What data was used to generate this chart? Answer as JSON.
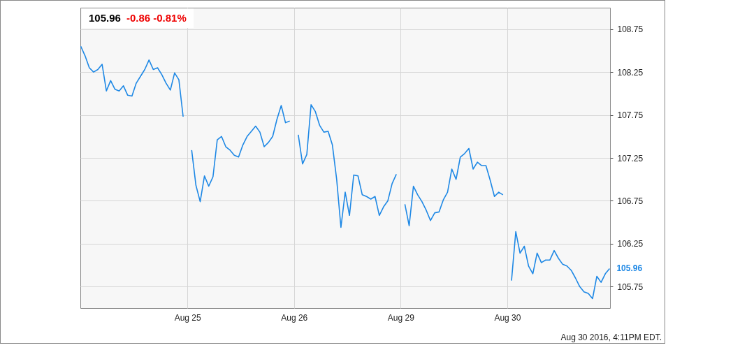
{
  "chart_data": {
    "type": "line",
    "title": "105.96",
    "subtitle": "-0.86  -0.81%",
    "annotations": [
      "105.96",
      "Aug 30 2016, 4:11PM EDT."
    ],
    "categories": [
      null,
      null,
      null,
      null,
      null,
      null,
      null,
      null,
      null,
      null,
      null,
      null,
      null,
      null,
      null,
      null,
      null,
      null,
      null,
      null,
      null,
      null,
      null,
      null,
      null,
      "Aug 25",
      null,
      null,
      null,
      null,
      null,
      null,
      null,
      null,
      null,
      null,
      null,
      null,
      null,
      null,
      null,
      null,
      null,
      null,
      null,
      null,
      null,
      null,
      null,
      null,
      "Aug 26",
      null,
      null,
      null,
      null,
      null,
      null,
      null,
      null,
      null,
      null,
      null,
      null,
      null,
      null,
      null,
      null,
      null,
      null,
      null,
      null,
      null,
      null,
      null,
      null,
      "Aug 29",
      null,
      null,
      null,
      null,
      null,
      null,
      null,
      null,
      null,
      null,
      null,
      null,
      null,
      null,
      null,
      null,
      null,
      null,
      null,
      null,
      null,
      null,
      null,
      null,
      "Aug 30",
      null,
      null,
      null,
      null,
      null,
      null,
      null,
      null,
      null,
      null,
      null,
      null,
      null,
      null,
      null,
      null,
      null,
      null,
      null,
      null,
      null,
      null,
      null,
      null
    ],
    "ylim": [
      105.5,
      109
    ],
    "yticks": [
      105.75,
      106.25,
      106.75,
      107.25,
      107.75,
      108.25,
      108.75
    ],
    "grid": true,
    "series": [
      {
        "color": "#1e88e5",
        "values": [
          108.55,
          108.44,
          108.3,
          108.25,
          108.28,
          108.34,
          108.03,
          108.15,
          108.05,
          108.03,
          108.09,
          107.98,
          107.97,
          108.12,
          108.2,
          108.28,
          108.39,
          108.28,
          108.3,
          108.22,
          108.12,
          108.04,
          108.24,
          108.16,
          107.73,
          null,
          107.34,
          106.93,
          106.74,
          107.04,
          106.92,
          107.03,
          107.46,
          107.5,
          107.38,
          107.34,
          107.28,
          107.26,
          107.4,
          107.5,
          107.56,
          107.62,
          107.55,
          107.38,
          107.43,
          107.5,
          107.7,
          107.86,
          107.66,
          107.68,
          null,
          107.52,
          107.18,
          107.29,
          107.87,
          107.79,
          107.63,
          107.55,
          107.56,
          107.4,
          107,
          106.44,
          106.85,
          106.58,
          107.05,
          107.04,
          106.82,
          106.8,
          106.77,
          106.8,
          106.58,
          106.68,
          106.75,
          106.95,
          107.06,
          null,
          106.71,
          106.46,
          106.92,
          106.82,
          106.74,
          106.64,
          106.52,
          106.61,
          106.62,
          106.76,
          106.85,
          107.12,
          107,
          107.26,
          107.3,
          107.36,
          107.12,
          107.2,
          107.16,
          107.16,
          106.99,
          106.8,
          106.85,
          106.82,
          null,
          105.82,
          106.39,
          106.14,
          106.22,
          105.99,
          105.9,
          106.14,
          106.03,
          106.06,
          106.06,
          106.17,
          106.08,
          106.01,
          105.99,
          105.94,
          105.85,
          105.75,
          105.69,
          105.67,
          105.61,
          105.87,
          105.8,
          105.9,
          105.96
        ]
      }
    ]
  }
}
